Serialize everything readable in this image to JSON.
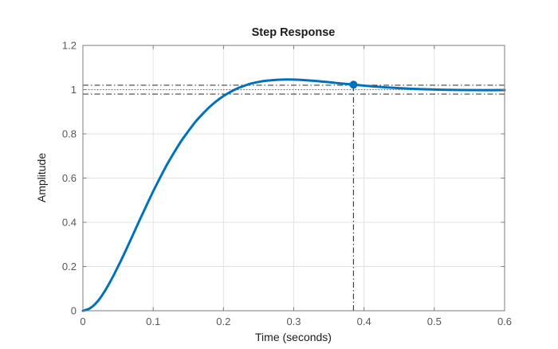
{
  "chart_data": {
    "type": "line",
    "title": "Step Response",
    "xlabel": "Time (seconds)",
    "ylabel": "Amplitude",
    "xlim": [
      0,
      0.6
    ],
    "ylim": [
      0,
      1.2
    ],
    "grid": true,
    "legend": "none",
    "x_ticks": {
      "values": [
        0,
        0.1,
        0.2,
        0.3,
        0.4,
        0.5,
        0.6
      ],
      "labels": [
        "0",
        "0.1",
        "0.2",
        "0.3",
        "0.4",
        "0.5",
        "0.6"
      ]
    },
    "y_ticks": {
      "values": [
        0,
        0.2,
        0.4,
        0.6,
        0.8,
        1.0,
        1.2
      ],
      "labels": [
        "0",
        "0.2",
        "0.4",
        "0.6",
        "0.8",
        "1",
        "1.2"
      ]
    },
    "series": [
      {
        "name": "step-response",
        "points": [
          [
            0.0,
            0.0
          ],
          [
            0.01,
            0.011
          ],
          [
            0.02,
            0.039
          ],
          [
            0.03,
            0.083
          ],
          [
            0.04,
            0.138
          ],
          [
            0.05,
            0.2
          ],
          [
            0.06,
            0.266
          ],
          [
            0.07,
            0.335
          ],
          [
            0.08,
            0.405
          ],
          [
            0.09,
            0.473
          ],
          [
            0.1,
            0.54
          ],
          [
            0.11,
            0.603
          ],
          [
            0.12,
            0.663
          ],
          [
            0.13,
            0.717
          ],
          [
            0.14,
            0.768
          ],
          [
            0.15,
            0.812
          ],
          [
            0.16,
            0.854
          ],
          [
            0.17,
            0.889
          ],
          [
            0.18,
            0.921
          ],
          [
            0.19,
            0.948
          ],
          [
            0.2,
            0.971
          ],
          [
            0.21,
            0.99
          ],
          [
            0.22,
            1.006
          ],
          [
            0.23,
            1.018
          ],
          [
            0.24,
            1.028
          ],
          [
            0.25,
            1.035
          ],
          [
            0.26,
            1.04
          ],
          [
            0.27,
            1.043
          ],
          [
            0.28,
            1.045
          ],
          [
            0.29,
            1.046
          ],
          [
            0.3,
            1.0455
          ],
          [
            0.31,
            1.044
          ],
          [
            0.32,
            1.042
          ],
          [
            0.33,
            1.0395
          ],
          [
            0.34,
            1.0366
          ],
          [
            0.35,
            1.0336
          ],
          [
            0.36,
            1.0304
          ],
          [
            0.37,
            1.0272
          ],
          [
            0.385,
            1.0225
          ],
          [
            0.39,
            1.021
          ],
          [
            0.41,
            1.0154
          ],
          [
            0.43,
            1.0106
          ],
          [
            0.45,
            1.0066
          ],
          [
            0.47,
            1.0036
          ],
          [
            0.49,
            1.0013
          ],
          [
            0.51,
            0.9997
          ],
          [
            0.54,
            0.9984
          ],
          [
            0.57,
            0.9979
          ],
          [
            0.6,
            0.998
          ]
        ]
      }
    ],
    "reference_lines": [
      {
        "name": "upper-settling-bound",
        "y": 1.02,
        "style": "dashdot"
      },
      {
        "name": "steady-state",
        "y": 1.0,
        "style": "dotted"
      },
      {
        "name": "lower-settling-bound",
        "y": 0.98,
        "style": "dashdot"
      }
    ],
    "settling_marker": {
      "time": 0.385,
      "value": 1.0225
    },
    "colors": {
      "line": "#0072BD",
      "reference": "#404040",
      "grid": "#e2e2e2",
      "axis": "#7c7c7c",
      "tick_label": "#575757",
      "text": "#1c1c1c",
      "background": "#ffffff"
    }
  }
}
